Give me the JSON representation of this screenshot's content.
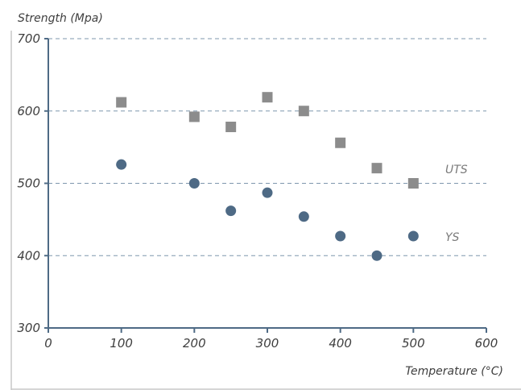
{
  "chart_data": {
    "type": "scatter",
    "xlabel": "Temperature (°C)",
    "ylabel": "Strength (Mpa)",
    "xlim": [
      0,
      600
    ],
    "ylim": [
      300,
      700
    ],
    "x_ticks": [
      "0",
      "100",
      "200",
      "300",
      "400",
      "500",
      "600"
    ],
    "y_ticks": [
      "300",
      "400",
      "500",
      "600",
      "700"
    ],
    "grid": "horizontal dashed",
    "series": [
      {
        "name": "UTS",
        "marker": "square",
        "color": "#8c8c8c",
        "points": [
          {
            "x": 100,
            "y": 612
          },
          {
            "x": 200,
            "y": 592
          },
          {
            "x": 250,
            "y": 578
          },
          {
            "x": 300,
            "y": 619
          },
          {
            "x": 350,
            "y": 600
          },
          {
            "x": 400,
            "y": 556
          },
          {
            "x": 450,
            "y": 521
          },
          {
            "x": 500,
            "y": 500
          }
        ]
      },
      {
        "name": "YS",
        "marker": "circle",
        "color": "#4e6a85",
        "points": [
          {
            "x": 100,
            "y": 526
          },
          {
            "x": 200,
            "y": 500
          },
          {
            "x": 250,
            "y": 462
          },
          {
            "x": 300,
            "y": 487
          },
          {
            "x": 350,
            "y": 454
          },
          {
            "x": 400,
            "y": 427
          },
          {
            "x": 450,
            "y": 400
          },
          {
            "x": 500,
            "y": 427
          }
        ]
      }
    ]
  }
}
